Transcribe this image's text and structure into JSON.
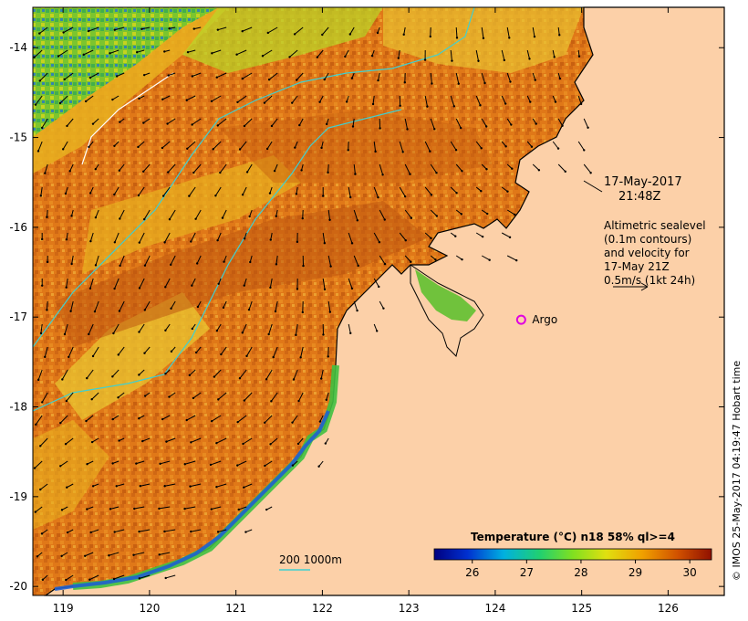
{
  "map": {
    "x_ticks": [
      "119",
      "120",
      "121",
      "122",
      "123",
      "124",
      "125",
      "126"
    ],
    "y_ticks": [
      "-14",
      "-15",
      "-16",
      "-17",
      "-18",
      "-19",
      "-20"
    ],
    "x_range": [
      118.65,
      126.65
    ],
    "y_range": [
      -20.1,
      -13.55
    ]
  },
  "annotation": {
    "date": "17-May-2017",
    "time": "21:48Z",
    "altimetry_lines": [
      "Altimetric sealevel",
      "(0.1m contours)",
      "and velocity for",
      "17-May 21Z",
      "0.5m/s (1kt 24h)"
    ]
  },
  "argo": {
    "label": "Argo",
    "lon": 124.3,
    "lat": -17.03,
    "color": "#e000e0"
  },
  "contour_legend": {
    "label": "200  1000m",
    "color": "#40d0d0"
  },
  "colorbar": {
    "title": "Temperature (°C) n18 58% ql>=4",
    "ticks": [
      "26",
      "27",
      "28",
      "29",
      "30"
    ],
    "min": 25.3,
    "max": 30.4
  },
  "credit": "© IMOS 25-May-2017 04:19:47 Hobart time",
  "colors": {
    "land": "#fcd0a8",
    "sst_warm": "#e07818",
    "sst_hot": "#c05810",
    "sst_mid": "#e8b020",
    "sst_cool": "#b8d828",
    "coast_green": "#40c040",
    "coast_blue": "#2060d0",
    "contour": "#40d0d0"
  }
}
